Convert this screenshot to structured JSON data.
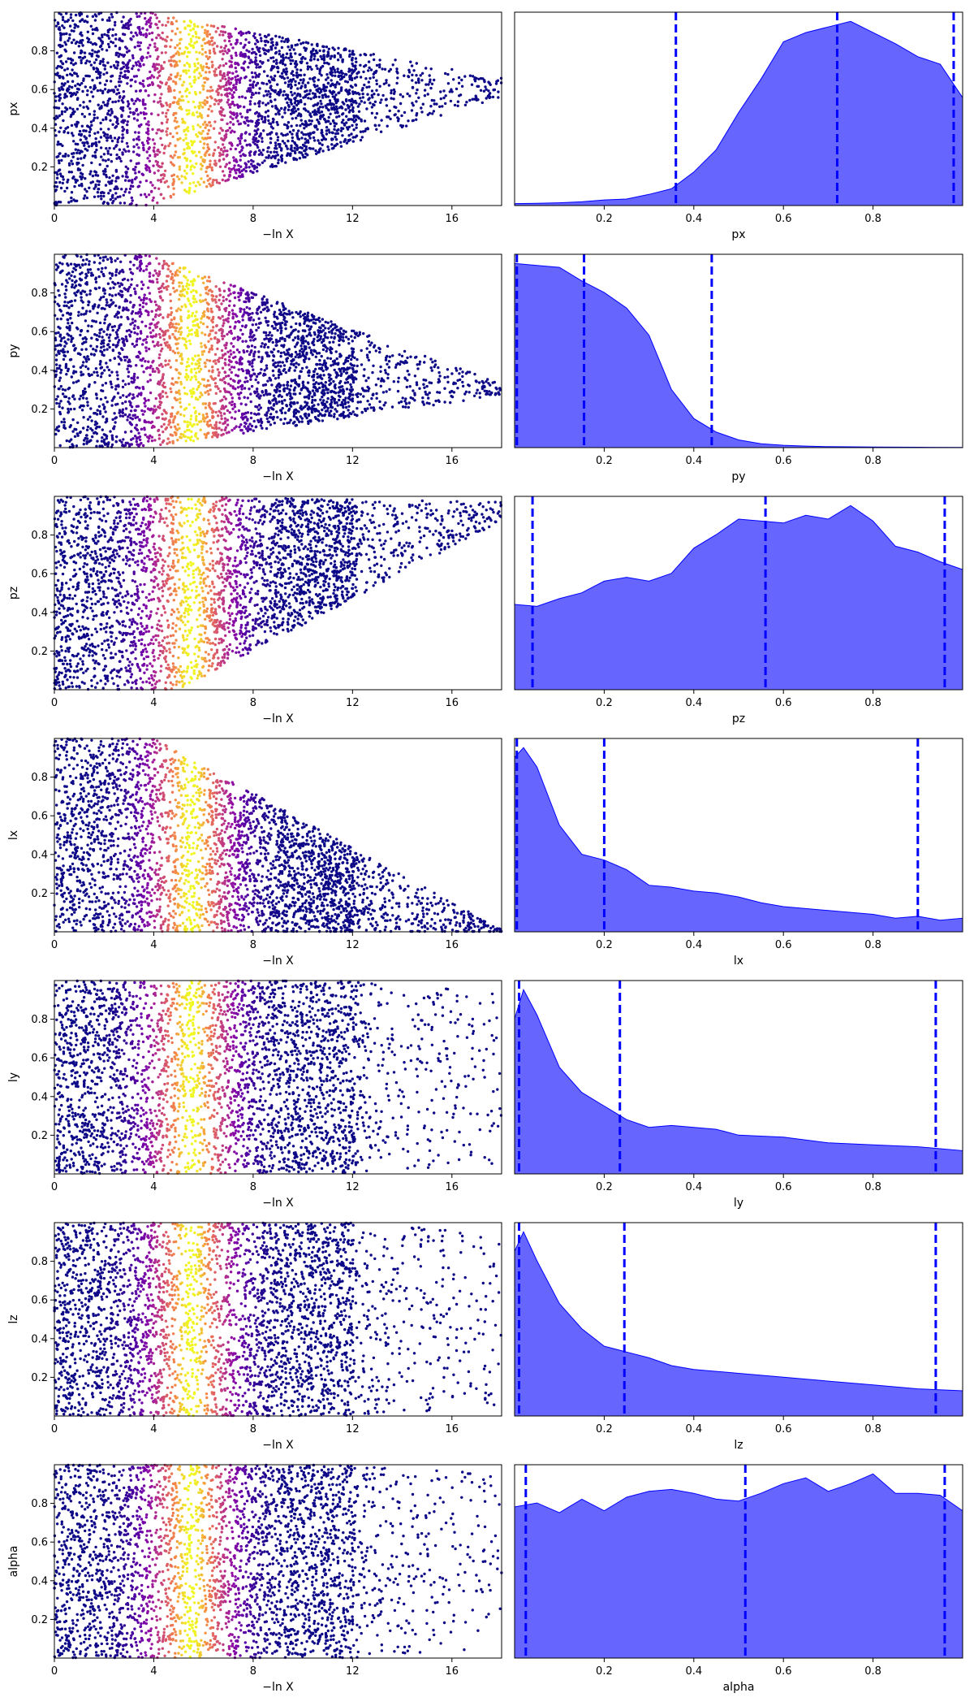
{
  "figure": {
    "colors": {
      "kde_fill": "#0000ff",
      "kde_fill_opacity": 0.6,
      "quantile_line": "#0000ff",
      "colormap": "plasma"
    }
  },
  "chart_data": [
    {
      "panel": "px-trace",
      "type": "scatter",
      "title": "",
      "xlabel": "−ln X",
      "ylabel": "px",
      "xlim": [
        0,
        18
      ],
      "ylim": [
        0,
        1
      ],
      "x_ticks": [
        0,
        4,
        8,
        12,
        16
      ],
      "y_ticks": [
        0.2,
        0.4,
        0.6,
        0.8
      ],
      "trace": {
        "early_range": [
          0,
          1
        ],
        "late_center": 0.61,
        "late_end_spread": 0.05,
        "late_collapse_x": 3.8,
        "max_lnx": 18,
        "peak_lnx": 5.5
      }
    },
    {
      "panel": "px-posterior",
      "type": "area",
      "title": "",
      "xlabel": "px",
      "xlim": [
        0,
        1
      ],
      "x_ticks": [
        0.2,
        0.4,
        0.6,
        0.8
      ],
      "density_x": [
        0,
        0.05,
        0.1,
        0.15,
        0.2,
        0.25,
        0.3,
        0.35,
        0.4,
        0.45,
        0.5,
        0.55,
        0.6,
        0.65,
        0.7,
        0.75,
        0.8,
        0.85,
        0.9,
        0.95,
        1.0
      ],
      "density": [
        0.01,
        0.012,
        0.015,
        0.02,
        0.03,
        0.035,
        0.06,
        0.09,
        0.18,
        0.3,
        0.5,
        0.68,
        0.88,
        0.93,
        0.96,
        0.99,
        0.93,
        0.87,
        0.8,
        0.76,
        0.58
      ],
      "quantiles": [
        0.36,
        0.72,
        0.98
      ]
    },
    {
      "panel": "py-trace",
      "type": "scatter",
      "title": "",
      "xlabel": "−ln X",
      "ylabel": "py",
      "xlim": [
        0,
        18
      ],
      "ylim": [
        0,
        1
      ],
      "x_ticks": [
        0,
        4,
        8,
        12,
        16
      ],
      "y_ticks": [
        0.2,
        0.4,
        0.6,
        0.8
      ],
      "trace": {
        "early_range": [
          0,
          1
        ],
        "late_center": 0.3,
        "late_end_spread": 0.03,
        "late_collapse_x": 3.8,
        "max_lnx": 18,
        "peak_lnx": 5.5
      }
    },
    {
      "panel": "py-posterior",
      "type": "area",
      "title": "",
      "xlabel": "py",
      "xlim": [
        0,
        1
      ],
      "x_ticks": [
        0.2,
        0.4,
        0.6,
        0.8
      ],
      "density_x": [
        0,
        0.05,
        0.1,
        0.15,
        0.2,
        0.25,
        0.3,
        0.35,
        0.4,
        0.45,
        0.5,
        0.55,
        0.6,
        0.65,
        0.7,
        0.8,
        0.9,
        1.0
      ],
      "density": [
        0.95,
        0.94,
        0.93,
        0.86,
        0.8,
        0.72,
        0.58,
        0.3,
        0.15,
        0.08,
        0.04,
        0.02,
        0.012,
        0.008,
        0.005,
        0.003,
        0.002,
        0.001
      ],
      "quantiles": [
        0.005,
        0.155,
        0.44
      ]
    },
    {
      "panel": "pz-trace",
      "type": "scatter",
      "title": "",
      "xlabel": "−ln X",
      "ylabel": "pz",
      "xlim": [
        0,
        18
      ],
      "ylim": [
        0,
        1
      ],
      "x_ticks": [
        0,
        4,
        8,
        12,
        16
      ],
      "y_ticks": [
        0.2,
        0.4,
        0.6,
        0.8
      ],
      "trace": {
        "early_range": [
          0,
          1
        ],
        "late_center": 0.92,
        "late_end_spread": 0.05,
        "late_collapse_x": 5.0,
        "max_lnx": 18,
        "peak_lnx": 5.5
      }
    },
    {
      "panel": "pz-posterior",
      "type": "area",
      "title": "",
      "xlabel": "pz",
      "xlim": [
        0,
        1
      ],
      "x_ticks": [
        0.2,
        0.4,
        0.6,
        0.8
      ],
      "density_x": [
        0,
        0.05,
        0.1,
        0.15,
        0.2,
        0.25,
        0.3,
        0.35,
        0.4,
        0.45,
        0.5,
        0.55,
        0.6,
        0.65,
        0.7,
        0.75,
        0.8,
        0.85,
        0.9,
        0.95,
        1.0
      ],
      "density": [
        0.44,
        0.43,
        0.47,
        0.5,
        0.56,
        0.58,
        0.56,
        0.6,
        0.73,
        0.8,
        0.88,
        0.87,
        0.86,
        0.9,
        0.88,
        0.95,
        0.87,
        0.74,
        0.71,
        0.66,
        0.62
      ],
      "quantiles": [
        0.04,
        0.56,
        0.96
      ]
    },
    {
      "panel": "lx-trace",
      "type": "scatter",
      "title": "",
      "xlabel": "−ln X",
      "ylabel": "lx",
      "xlim": [
        0,
        18
      ],
      "ylim": [
        0,
        1
      ],
      "x_ticks": [
        0,
        4,
        8,
        12,
        16
      ],
      "y_ticks": [
        0.2,
        0.4,
        0.6,
        0.8
      ],
      "trace": {
        "early_range": [
          0,
          1
        ],
        "late_center": 0.0,
        "late_end_spread": 0.01,
        "late_collapse_x": 4.0,
        "max_lnx": 18,
        "peak_lnx": 5.5
      }
    },
    {
      "panel": "lx-posterior",
      "type": "area",
      "title": "",
      "xlabel": "lx",
      "xlim": [
        0,
        1
      ],
      "x_ticks": [
        0.2,
        0.4,
        0.6,
        0.8
      ],
      "density_x": [
        0,
        0.02,
        0.05,
        0.1,
        0.15,
        0.2,
        0.25,
        0.3,
        0.35,
        0.4,
        0.45,
        0.5,
        0.55,
        0.6,
        0.7,
        0.8,
        0.85,
        0.9,
        0.95,
        1.0
      ],
      "density": [
        0.9,
        0.95,
        0.85,
        0.55,
        0.4,
        0.37,
        0.32,
        0.24,
        0.23,
        0.21,
        0.2,
        0.18,
        0.15,
        0.13,
        0.11,
        0.09,
        0.07,
        0.08,
        0.06,
        0.07
      ],
      "quantiles": [
        0.005,
        0.2,
        0.9
      ]
    },
    {
      "panel": "ly-trace",
      "type": "scatter",
      "title": "",
      "xlabel": "−ln X",
      "ylabel": "ly",
      "xlim": [
        0,
        18
      ],
      "ylim": [
        0,
        1
      ],
      "x_ticks": [
        0,
        4,
        8,
        12,
        16
      ],
      "y_ticks": [
        0.2,
        0.4,
        0.6,
        0.8
      ],
      "trace": {
        "early_range": [
          0,
          1
        ],
        "late_center": 0.5,
        "late_end_spread": 0.45,
        "late_collapse_x": 12.0,
        "max_lnx": 18,
        "peak_lnx": 5.5
      }
    },
    {
      "panel": "ly-posterior",
      "type": "area",
      "title": "",
      "xlabel": "ly",
      "xlim": [
        0,
        1
      ],
      "x_ticks": [
        0.2,
        0.4,
        0.6,
        0.8
      ],
      "density_x": [
        0,
        0.02,
        0.05,
        0.1,
        0.15,
        0.2,
        0.25,
        0.3,
        0.35,
        0.4,
        0.45,
        0.5,
        0.6,
        0.7,
        0.8,
        0.9,
        1.0
      ],
      "density": [
        0.8,
        0.95,
        0.82,
        0.55,
        0.42,
        0.35,
        0.28,
        0.24,
        0.25,
        0.24,
        0.23,
        0.2,
        0.19,
        0.16,
        0.15,
        0.14,
        0.12
      ],
      "quantiles": [
        0.01,
        0.235,
        0.94
      ]
    },
    {
      "panel": "lz-trace",
      "type": "scatter",
      "title": "",
      "xlabel": "−ln X",
      "ylabel": "lz",
      "xlim": [
        0,
        18
      ],
      "ylim": [
        0,
        1
      ],
      "x_ticks": [
        0,
        4,
        8,
        12,
        16
      ],
      "y_ticks": [
        0.2,
        0.4,
        0.6,
        0.8
      ],
      "trace": {
        "early_range": [
          0,
          1
        ],
        "late_center": 0.5,
        "late_end_spread": 0.45,
        "late_collapse_x": 12.0,
        "max_lnx": 18,
        "peak_lnx": 5.5
      }
    },
    {
      "panel": "lz-posterior",
      "type": "area",
      "title": "",
      "xlabel": "lz",
      "xlim": [
        0,
        1
      ],
      "x_ticks": [
        0.2,
        0.4,
        0.6,
        0.8
      ],
      "density_x": [
        0,
        0.02,
        0.05,
        0.1,
        0.15,
        0.2,
        0.25,
        0.3,
        0.35,
        0.4,
        0.45,
        0.5,
        0.6,
        0.7,
        0.8,
        0.9,
        1.0
      ],
      "density": [
        0.85,
        0.95,
        0.8,
        0.58,
        0.45,
        0.36,
        0.33,
        0.3,
        0.26,
        0.24,
        0.23,
        0.22,
        0.2,
        0.18,
        0.16,
        0.14,
        0.13
      ],
      "quantiles": [
        0.01,
        0.245,
        0.94
      ]
    },
    {
      "panel": "alpha-trace",
      "type": "scatter",
      "title": "",
      "xlabel": "−ln X",
      "ylabel": "alpha",
      "xlim": [
        0,
        18
      ],
      "ylim": [
        0,
        1
      ],
      "x_ticks": [
        0,
        4,
        8,
        12,
        16
      ],
      "y_ticks": [
        0.2,
        0.4,
        0.6,
        0.8
      ],
      "trace": {
        "early_range": [
          0,
          1
        ],
        "late_center": 0.5,
        "late_end_spread": 0.45,
        "late_collapse_x": 12.0,
        "max_lnx": 18,
        "peak_lnx": 5.5
      }
    },
    {
      "panel": "alpha-posterior",
      "type": "area",
      "title": "",
      "xlabel": "alpha",
      "xlim": [
        0,
        1
      ],
      "x_ticks": [
        0.2,
        0.4,
        0.6,
        0.8
      ],
      "density_x": [
        0,
        0.05,
        0.1,
        0.15,
        0.2,
        0.25,
        0.3,
        0.35,
        0.4,
        0.45,
        0.5,
        0.55,
        0.6,
        0.65,
        0.7,
        0.75,
        0.8,
        0.85,
        0.9,
        0.95,
        1.0
      ],
      "density": [
        0.78,
        0.8,
        0.75,
        0.82,
        0.76,
        0.83,
        0.86,
        0.87,
        0.85,
        0.82,
        0.81,
        0.85,
        0.9,
        0.93,
        0.86,
        0.9,
        0.95,
        0.85,
        0.85,
        0.84,
        0.76
      ],
      "quantiles": [
        0.025,
        0.515,
        0.96
      ]
    }
  ]
}
